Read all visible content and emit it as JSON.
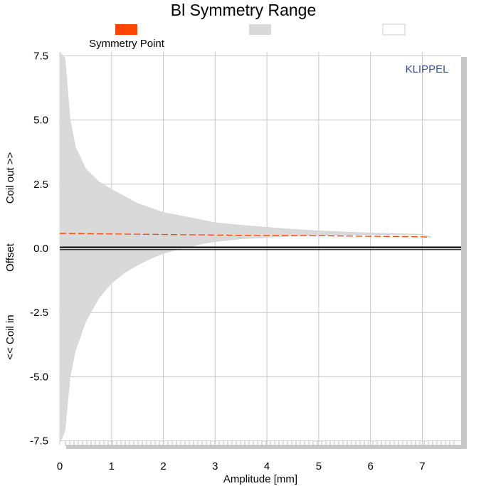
{
  "chart_data": {
    "type": "area",
    "title": "Bl Symmetry Range",
    "xlabel": "Amplitude [mm]",
    "ylabel_parts": [
      "Coil out >>",
      "Offset",
      "<< Coil in"
    ],
    "watermark": "KLIPPEL",
    "xlim": [
      0,
      7.75
    ],
    "ylim": [
      -7.65,
      7.65
    ],
    "x_ticks": [
      "0",
      "1",
      "2",
      "3",
      "4",
      "5",
      "6",
      "7"
    ],
    "y_ticks": [
      "7.5",
      "5.0",
      "2.5",
      "0.0",
      "-2.5",
      "-5.0",
      "-7.5"
    ],
    "grid": true,
    "legend": [
      {
        "label": "Symmetry Point",
        "color": "#ff4500"
      },
      {
        "label": "",
        "color": "#d9d9d9"
      },
      {
        "label": "",
        "color": "#ffffff"
      }
    ],
    "series": [
      {
        "name": "Symmetry Point",
        "color": "#ff4500",
        "style": "dashed",
        "x": [
          0,
          0.5,
          1,
          1.5,
          2,
          2.5,
          3,
          3.5,
          4,
          4.5,
          5,
          5.5,
          6,
          6.5,
          7,
          7.15
        ],
        "y": [
          0.58,
          0.57,
          0.56,
          0.55,
          0.54,
          0.53,
          0.52,
          0.51,
          0.5,
          0.5,
          0.49,
          0.48,
          0.47,
          0.46,
          0.45,
          0.43
        ]
      },
      {
        "name": "Range upper",
        "color": "#d9d9d9",
        "x": [
          0.02,
          0.1,
          0.2,
          0.3,
          0.5,
          0.75,
          1,
          1.5,
          2,
          2.5,
          3,
          3.5,
          4,
          4.5,
          5,
          5.5,
          6,
          6.5,
          7,
          7.15
        ],
        "y": [
          7.6,
          7.4,
          5.0,
          3.95,
          3.1,
          2.6,
          2.3,
          1.75,
          1.4,
          1.2,
          1.0,
          0.9,
          0.82,
          0.74,
          0.68,
          0.64,
          0.6,
          0.57,
          0.55,
          0.45
        ]
      },
      {
        "name": "Range lower",
        "color": "#d9d9d9",
        "x": [
          0.02,
          0.1,
          0.2,
          0.3,
          0.5,
          0.75,
          1,
          1.25,
          1.5,
          1.75,
          2,
          2.25,
          2.5,
          2.75,
          3,
          3.5,
          4,
          4.5,
          5,
          5.5,
          6,
          6.5,
          7,
          7.15
        ],
        "y": [
          -7.5,
          -7.1,
          -5.0,
          -4.0,
          -2.85,
          -1.95,
          -1.35,
          -0.95,
          -0.65,
          -0.4,
          -0.2,
          -0.05,
          0.05,
          0.18,
          0.26,
          0.37,
          0.43,
          0.47,
          0.5,
          0.52,
          0.53,
          0.54,
          0.54,
          0.42
        ]
      }
    ]
  }
}
